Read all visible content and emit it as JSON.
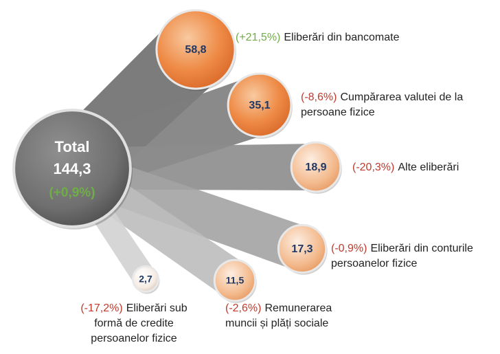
{
  "chart_data": {
    "type": "radial-bubble",
    "total": {
      "label": "Total",
      "value": 144.3,
      "value_label": "144,3",
      "change": 0.9,
      "change_label": "(+0,9%)"
    },
    "categories": [
      "Eliberări din bancomate",
      "Cumpărarea valutei de la persoane fizice",
      "Alte eliberări",
      "Eliberări din conturile persoanelor fizice",
      "Remunerarea muncii și plăți sociale",
      "Eliberări sub formă de credite persoanelor fizice"
    ],
    "values": [
      58.8,
      35.1,
      18.9,
      17.3,
      11.5,
      2.7
    ],
    "value_labels": [
      "58,8",
      "35,1",
      "18,9",
      "17,3",
      "11,5",
      "2,7"
    ],
    "changes": [
      21.5,
      -8.6,
      -20.3,
      -0.9,
      -2.6,
      -17.2
    ],
    "change_labels": [
      "(+21,5%)",
      "(-8,6%)",
      "(-20,3%)",
      "(-0,9%)",
      "(-2,6%)",
      "(-17,2%)"
    ],
    "positive_color": "#70ad47",
    "negative_color": "#c0392b"
  }
}
